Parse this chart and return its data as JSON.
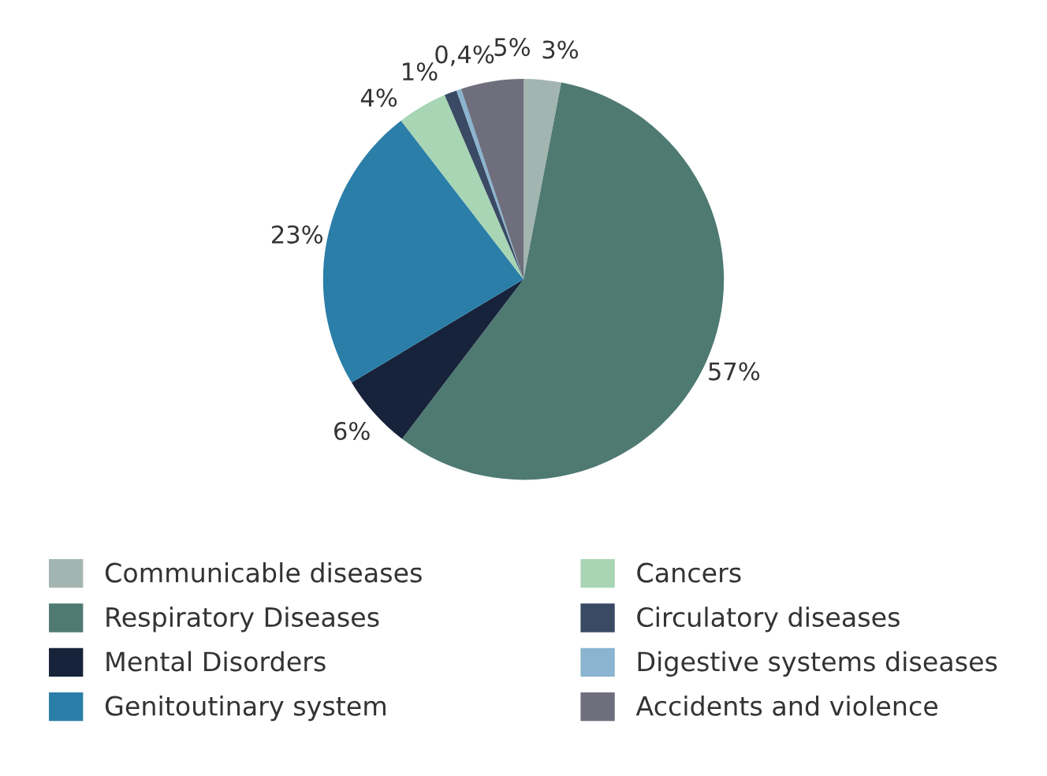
{
  "chart_data": {
    "type": "pie",
    "categories": [
      "Communicable diseases",
      "Respiratory Diseases",
      "Mental Disorders",
      "Genitoutinary system",
      "Cancers",
      "Circulatory diseases",
      "Digestive systems diseases",
      "Accidents and violence"
    ],
    "values": [
      3,
      57,
      6,
      23,
      4,
      1,
      0.4,
      5
    ],
    "value_labels": [
      "3%",
      "57%",
      "6%",
      "23%",
      "4%",
      "1%",
      "0,4%",
      "5%"
    ],
    "colors": [
      "#a3b5b1",
      "#4e7a72",
      "#16233a",
      "#2b7ea8",
      "#a8d5b4",
      "#3a4a65",
      "#8ab4cf",
      "#6e6e7c"
    ],
    "legend": "bottom"
  }
}
